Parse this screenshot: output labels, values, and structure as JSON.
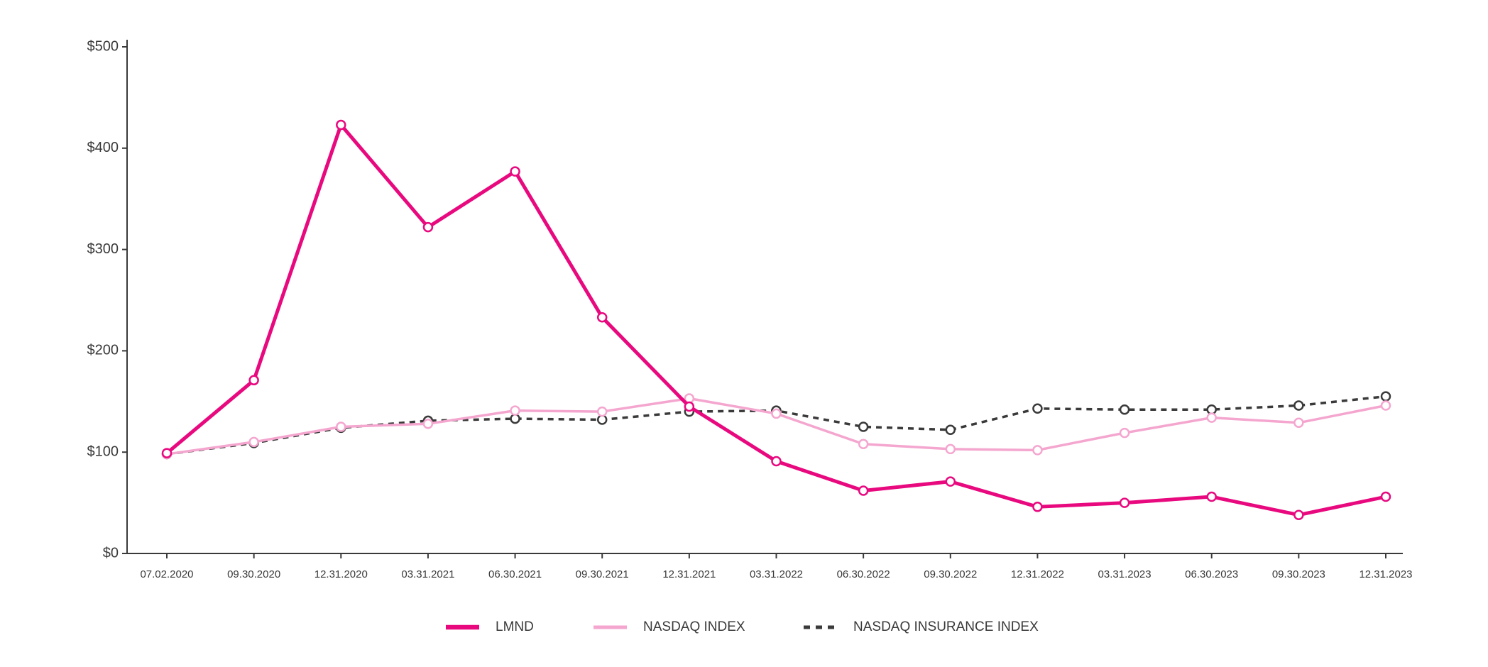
{
  "chart_data": {
    "type": "line",
    "categories": [
      "07.02.2020",
      "09.30.2020",
      "12.31.2020",
      "03.31.2021",
      "06.30.2021",
      "09.30.2021",
      "12.31.2021",
      "03.31.2022",
      "06.30.2022",
      "09.30.2022",
      "12.31.2022",
      "03.31.2023",
      "06.30.2023",
      "09.30.2023",
      "12.31.2023"
    ],
    "series": [
      {
        "name": "LMND",
        "color": "#e8097f",
        "dash": false,
        "width": 5,
        "values": [
          99,
          171,
          423,
          322,
          377,
          233,
          145,
          91,
          62,
          71,
          46,
          50,
          56,
          38,
          56
        ]
      },
      {
        "name": "NASDAQ INDEX",
        "color": "#f4a6cf",
        "dash": false,
        "width": 3.5,
        "values": [
          98,
          110,
          125,
          128,
          141,
          140,
          153,
          138,
          108,
          103,
          102,
          119,
          134,
          129,
          146
        ]
      },
      {
        "name": "NASDAQ INSURANCE INDEX",
        "color": "#3a3a3a",
        "dash": true,
        "width": 3.5,
        "values": [
          98,
          109,
          124,
          131,
          133,
          132,
          140,
          141,
          125,
          122,
          143,
          142,
          142,
          146,
          155
        ]
      }
    ],
    "ylim": [
      0,
      500
    ],
    "yticks": [
      {
        "value": 0,
        "label": "$0"
      },
      {
        "value": 100,
        "label": "$100"
      },
      {
        "value": 200,
        "label": "$200"
      },
      {
        "value": 300,
        "label": "$300"
      },
      {
        "value": 400,
        "label": "$400"
      },
      {
        "value": 500,
        "label": "$500"
      }
    ],
    "grid": false,
    "legend": "bottom"
  }
}
